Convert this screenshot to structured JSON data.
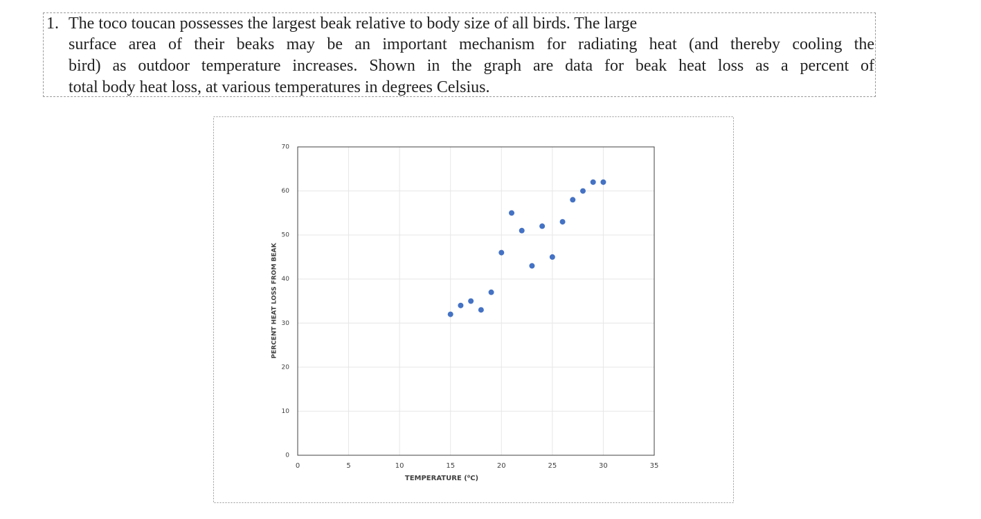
{
  "question": {
    "number": "1.",
    "lines": [
      "The toco toucan possesses the largest beak relative to body size of all birds.  The large",
      "surface area of their beaks may be an important mechanism for radiating heat (and thereby cooling the",
      "bird) as outdoor temperature increases. Shown in the graph are data for beak heat loss as a percent of",
      "total body heat loss, at various temperatures in degrees Celsius."
    ]
  },
  "chart_data": {
    "type": "scatter",
    "x_label": "TEMPERATURE (⁰C)",
    "y_label": "PERCENT HEAT LOSS FROM BEAK",
    "x": [
      15,
      16,
      17,
      18,
      19,
      20,
      21,
      22,
      23,
      24,
      25,
      26,
      27,
      28,
      29,
      30
    ],
    "values": [
      32,
      34,
      35,
      33,
      37,
      46,
      55,
      51,
      43,
      52,
      45,
      53,
      58,
      60,
      62,
      62
    ],
    "color": "#4472c4",
    "xlim": [
      0,
      35
    ],
    "xticks": [
      0,
      5,
      10,
      15,
      20,
      25,
      30,
      35
    ],
    "ylim": [
      0,
      70
    ],
    "yticks": [
      0,
      10,
      20,
      30,
      40,
      50,
      60,
      70
    ],
    "grid": true
  }
}
